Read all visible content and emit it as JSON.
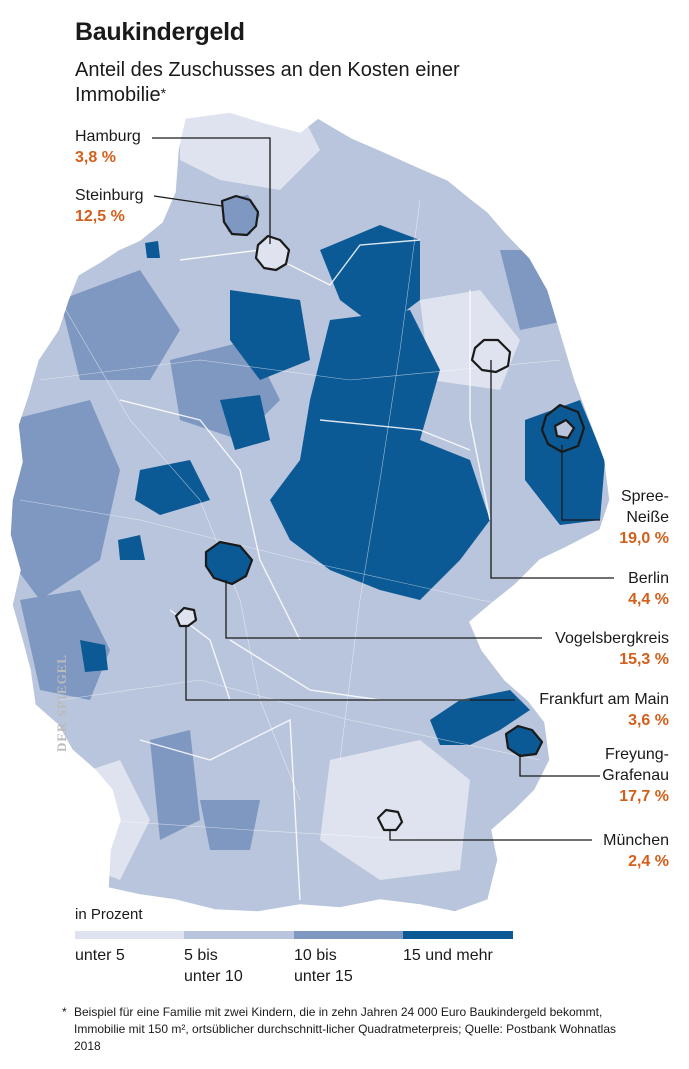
{
  "header": {
    "title": "Baukindergeld",
    "subtitle": "Anteil des Zuschusses an den Kosten einer Immobilie",
    "subtitle_mark": "*"
  },
  "colors": {
    "unter_5": "#dfe3ef",
    "5_bis_unter_10": "#b9c5dc",
    "10_bis_unter_15": "#7f98c2",
    "15_und_mehr": "#0b5995",
    "value_text": "#d35f1b",
    "outline": "#1a1a1a"
  },
  "regions": [
    {
      "name": "Hamburg",
      "value": "3,8 %"
    },
    {
      "name": "Steinburg",
      "value": "12,5 %"
    },
    {
      "name_line1": "Spree-",
      "name_line2": "Neiße",
      "value": "19,0 %"
    },
    {
      "name": "Berlin",
      "value": "4,4 %"
    },
    {
      "name": "Vogelsbergkreis",
      "value": "15,3 %"
    },
    {
      "name": "Frankfurt am Main",
      "value": "3,6 %"
    },
    {
      "name_line1": "Freyung-",
      "name_line2": "Grafenau",
      "value": "17,7 %"
    },
    {
      "name": "München",
      "value": "2,4 %"
    }
  ],
  "legend": {
    "title": "in Prozent",
    "classes": [
      {
        "line1": "unter 5",
        "line2": ""
      },
      {
        "line1": "5 bis",
        "line2": "unter 10"
      },
      {
        "line1": "10 bis",
        "line2": "unter 15"
      },
      {
        "line1": "15 und mehr",
        "line2": ""
      }
    ]
  },
  "watermark": "DER SPIEGEL",
  "footnote": {
    "mark": "*",
    "text": "Beispiel für eine Familie mit zwei Kindern, die in zehn Jahren 24 000 Euro Baukindergeld bekommt, Immobilie mit 150 m², ortsüblicher durchschnitt-licher Quadratmeterpreis; Quelle: Postbank Wohnatlas 2018"
  }
}
